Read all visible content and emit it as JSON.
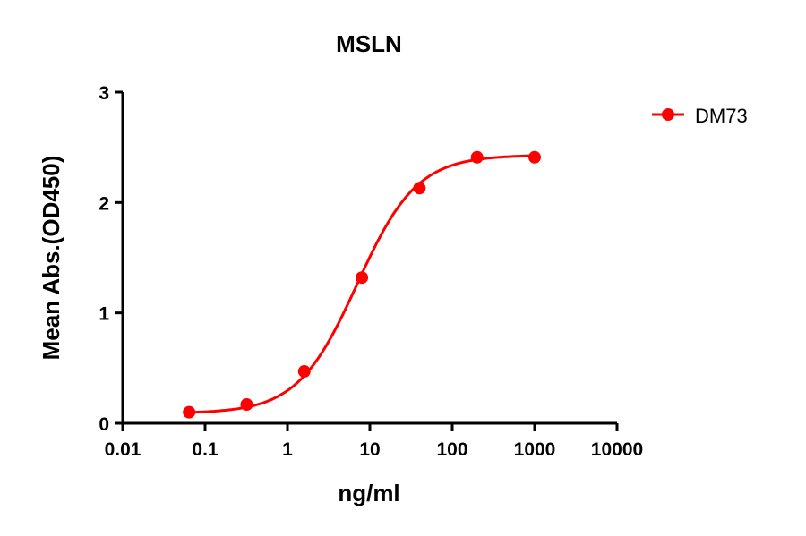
{
  "chart_data": {
    "type": "line",
    "title": "MSLN",
    "xlabel": "ng/ml",
    "ylabel": "Mean Abs.(OD450)",
    "x_scale": "log",
    "xlim": [
      0.01,
      10000
    ],
    "ylim": [
      0,
      3
    ],
    "x_ticks": [
      "0.01",
      "0.1",
      "1",
      "10",
      "100",
      "1000",
      "10000"
    ],
    "y_ticks": [
      "0",
      "1",
      "2",
      "3"
    ],
    "grid": false,
    "legend_position": "top-right",
    "series": [
      {
        "name": "DM73",
        "color": "#ff0000",
        "marker": "circle",
        "fit": "sigmoidal curve",
        "x": [
          0.064,
          0.32,
          1.6,
          8,
          40,
          200,
          1000
        ],
        "y": [
          0.1,
          0.17,
          0.47,
          1.32,
          2.13,
          2.41,
          2.41
        ]
      }
    ]
  }
}
